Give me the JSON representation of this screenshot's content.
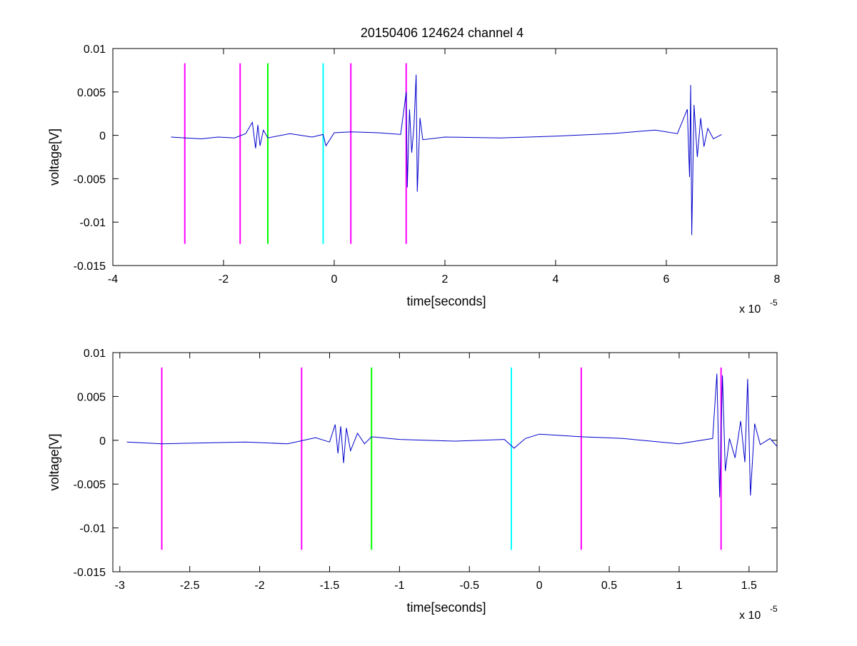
{
  "figure": {
    "title": "20150406 124624 channel 4",
    "background": "#ffffff"
  },
  "chart_data": [
    {
      "type": "line",
      "title": "20150406 124624 channel 4",
      "xlabel": "time[seconds]",
      "ylabel": "voltage[V]",
      "x_exponent_label": "x 10",
      "x_exponent_power": "-5",
      "xlim": [
        -4,
        8
      ],
      "ylim": [
        -0.015,
        0.01
      ],
      "x_ticks": [
        -4,
        -2,
        0,
        2,
        4,
        6,
        8
      ],
      "x_tick_labels": [
        "-4",
        "-2",
        "0",
        "2",
        "4",
        "6",
        "8"
      ],
      "y_ticks": [
        -0.015,
        -0.01,
        -0.005,
        0,
        0.005,
        0.01
      ],
      "y_tick_labels": [
        "-0.015",
        "-0.01",
        "-0.005",
        "0",
        "0.005",
        "0.01"
      ],
      "grid": false,
      "series": [
        {
          "color": "#0000cc",
          "values": [
            [
              -2.95,
              -0.0002
            ],
            [
              -2.7,
              -0.0003
            ],
            [
              -2.4,
              -0.0004
            ],
            [
              -2.1,
              -0.0002
            ],
            [
              -1.8,
              -0.0003
            ],
            [
              -1.6,
              0.0002
            ],
            [
              -1.48,
              0.0015
            ],
            [
              -1.42,
              -0.0015
            ],
            [
              -1.38,
              0.0012
            ],
            [
              -1.34,
              -0.0012
            ],
            [
              -1.28,
              0.0006
            ],
            [
              -1.2,
              -0.0003
            ],
            [
              -0.8,
              0.0002
            ],
            [
              -0.4,
              -0.0002
            ],
            [
              -0.2,
              0.0001
            ],
            [
              -0.15,
              -0.0012
            ],
            [
              0.0,
              0.0003
            ],
            [
              0.3,
              0.0004
            ],
            [
              0.8,
              0.0003
            ],
            [
              1.2,
              0.0001
            ],
            [
              1.3,
              0.005
            ],
            [
              1.32,
              -0.006
            ],
            [
              1.36,
              0.003
            ],
            [
              1.4,
              -0.002
            ],
            [
              1.44,
              0.001
            ],
            [
              1.48,
              0.007
            ],
            [
              1.5,
              -0.0065
            ],
            [
              1.55,
              0.002
            ],
            [
              1.6,
              -0.0005
            ],
            [
              2.0,
              -0.0002
            ],
            [
              3.0,
              -0.0003
            ],
            [
              4.0,
              -0.0001
            ],
            [
              5.0,
              0.0002
            ],
            [
              5.8,
              0.0006
            ],
            [
              6.2,
              0.0002
            ],
            [
              6.38,
              0.003
            ],
            [
              6.42,
              -0.0048
            ],
            [
              6.44,
              0.0058
            ],
            [
              6.46,
              -0.0115
            ],
            [
              6.5,
              0.0035
            ],
            [
              6.56,
              -0.0025
            ],
            [
              6.62,
              0.002
            ],
            [
              6.68,
              -0.0013
            ],
            [
              6.75,
              0.0008
            ],
            [
              6.85,
              -0.0004
            ],
            [
              7.0,
              0.0001
            ]
          ]
        }
      ],
      "markers": [
        {
          "x": -2.7,
          "color": "#ff00ff"
        },
        {
          "x": -1.7,
          "color": "#ff00ff"
        },
        {
          "x": -1.2,
          "color": "#00ff00"
        },
        {
          "x": -0.2,
          "color": "#00ffff"
        },
        {
          "x": 0.3,
          "color": "#ff00ff"
        },
        {
          "x": 1.3,
          "color": "#ff00ff"
        }
      ],
      "marker_range": [
        -0.0125,
        0.0083
      ]
    },
    {
      "type": "line",
      "xlabel": "time[seconds]",
      "ylabel": "voltage[V]",
      "x_exponent_label": "x 10",
      "x_exponent_power": "-5",
      "xlim": [
        -3.05,
        1.7
      ],
      "ylim": [
        -0.015,
        0.01
      ],
      "x_ticks": [
        -3,
        -2.5,
        -2,
        -1.5,
        -1,
        -0.5,
        0,
        0.5,
        1,
        1.5
      ],
      "x_tick_labels": [
        "-3",
        "-2.5",
        "-2",
        "-1.5",
        "-1",
        "-0.5",
        "0",
        "0.5",
        "1",
        "1.5"
      ],
      "y_ticks": [
        -0.015,
        -0.01,
        -0.005,
        0,
        0.005,
        0.01
      ],
      "y_tick_labels": [
        "-0.015",
        "-0.01",
        "-0.005",
        "0",
        "0.005",
        "0.01"
      ],
      "grid": false,
      "series": [
        {
          "color": "#0000cc",
          "values": [
            [
              -2.95,
              -0.0002
            ],
            [
              -2.7,
              -0.0004
            ],
            [
              -2.4,
              -0.0003
            ],
            [
              -2.1,
              -0.0002
            ],
            [
              -1.8,
              -0.0004
            ],
            [
              -1.6,
              0.0003
            ],
            [
              -1.5,
              -0.0002
            ],
            [
              -1.46,
              0.0018
            ],
            [
              -1.44,
              -0.0015
            ],
            [
              -1.42,
              0.0016
            ],
            [
              -1.4,
              -0.0026
            ],
            [
              -1.38,
              0.0014
            ],
            [
              -1.35,
              -0.0012
            ],
            [
              -1.3,
              0.0008
            ],
            [
              -1.25,
              -0.0004
            ],
            [
              -1.2,
              0.0004
            ],
            [
              -1.0,
              0.0001
            ],
            [
              -0.6,
              -0.0001
            ],
            [
              -0.25,
              0.0001
            ],
            [
              -0.18,
              -0.0009
            ],
            [
              -0.1,
              0.0002
            ],
            [
              0.0,
              0.0007
            ],
            [
              0.3,
              0.0004
            ],
            [
              0.6,
              0.0002
            ],
            [
              1.0,
              -0.0004
            ],
            [
              1.24,
              0.0002
            ],
            [
              1.27,
              0.0076
            ],
            [
              1.29,
              -0.0065
            ],
            [
              1.31,
              0.0074
            ],
            [
              1.33,
              -0.0035
            ],
            [
              1.36,
              0.0002
            ],
            [
              1.4,
              -0.002
            ],
            [
              1.44,
              0.0022
            ],
            [
              1.47,
              -0.0025
            ],
            [
              1.49,
              0.007
            ],
            [
              1.51,
              -0.0063
            ],
            [
              1.54,
              0.0019
            ],
            [
              1.58,
              -0.0005
            ],
            [
              1.65,
              0.0002
            ],
            [
              1.7,
              -0.0007
            ]
          ]
        }
      ],
      "markers": [
        {
          "x": -2.7,
          "color": "#ff00ff"
        },
        {
          "x": -1.7,
          "color": "#ff00ff"
        },
        {
          "x": -1.2,
          "color": "#00ff00"
        },
        {
          "x": -0.2,
          "color": "#00ffff"
        },
        {
          "x": 0.3,
          "color": "#ff00ff"
        },
        {
          "x": 1.3,
          "color": "#ff00ff"
        }
      ],
      "marker_range": [
        -0.0125,
        0.0083
      ]
    }
  ]
}
